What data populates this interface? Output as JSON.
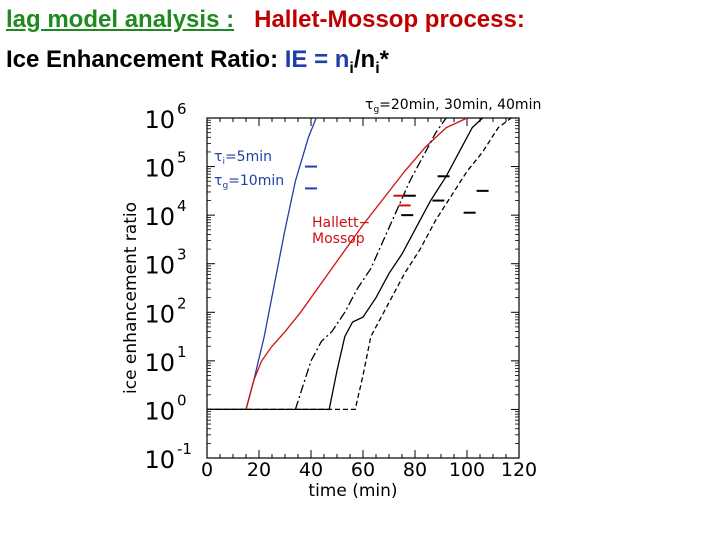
{
  "header": {
    "title_part1": "lag model analysis :",
    "title_part2": "Hallet-Mossop process:",
    "subtitle_prefix": "Ice Enhancement Ratio:",
    "subtitle_formula_a": "IE = n",
    "subtitle_sub1": "i",
    "subtitle_slash": "/n",
    "subtitle_sub2": "i",
    "subtitle_star": "*"
  },
  "colors": {
    "title_green": "#1f8a1f",
    "title_red": "#c00000",
    "formula_blue": "#1f3fa8",
    "series_blue": "#1f3fa8",
    "series_red": "#d01010",
    "series_black": "#000000"
  },
  "chart_data": {
    "type": "line",
    "xlabel": "time (min)",
    "ylabel": "ice enhancement ratio",
    "xlim": [
      0,
      120
    ],
    "ylim_log10": [
      -1,
      6
    ],
    "y_scale": "log",
    "x_ticks": [
      "0",
      "20",
      "40",
      "60",
      "80",
      "100",
      "120"
    ],
    "y_ticks": [
      {
        "base": "10",
        "exp": "-1"
      },
      {
        "base": "10",
        "exp": "0"
      },
      {
        "base": "10",
        "exp": "1"
      },
      {
        "base": "10",
        "exp": "2"
      },
      {
        "base": "10",
        "exp": "3"
      },
      {
        "base": "10",
        "exp": "4"
      },
      {
        "base": "10",
        "exp": "5"
      },
      {
        "base": "10",
        "exp": "6"
      }
    ],
    "grid": false,
    "annotations": {
      "top_label": "τ_g=20min, 30min, 40min",
      "top_label_tau": "τ",
      "top_label_sub": "g",
      "top_label_rest": "=20min, 30min, 40min",
      "blue_label_1_tau": "τ",
      "blue_label_1_sub": "i",
      "blue_label_1_rest": "=5min",
      "blue_label_2_tau": "τ",
      "blue_label_2_sub": "g",
      "blue_label_2_rest": "=10min",
      "red_label_line1": "Hallett−",
      "red_label_line2": "Mossop"
    },
    "series": [
      {
        "key": "blue",
        "style": "solid",
        "color": "#1f3fa8",
        "x": [
          0,
          15,
          18,
          22,
          26,
          30,
          34,
          39,
          42
        ],
        "y": [
          0,
          0,
          0.6,
          1.5,
          2.6,
          3.7,
          4.7,
          5.6,
          6.0
        ]
      },
      {
        "key": "red",
        "style": "solid",
        "color": "#d01010",
        "x": [
          15,
          18,
          21,
          25,
          30,
          36,
          44,
          52,
          60,
          68,
          76,
          84,
          92,
          100
        ],
        "y": [
          0,
          0.6,
          1.0,
          1.3,
          1.6,
          2.0,
          2.6,
          3.2,
          3.8,
          4.35,
          4.9,
          5.4,
          5.8,
          6.0
        ]
      },
      {
        "key": "black_20",
        "style": "dashdot",
        "color": "#000000",
        "x": [
          34,
          37,
          40,
          44,
          48,
          53,
          58,
          63,
          68,
          73,
          78,
          83,
          88,
          92
        ],
        "y": [
          0,
          0.5,
          1.0,
          1.4,
          1.6,
          2.0,
          2.5,
          2.9,
          3.5,
          4.1,
          4.7,
          5.2,
          5.7,
          6.0
        ]
      },
      {
        "key": "black_30",
        "style": "solid",
        "color": "#000000",
        "x": [
          0,
          47,
          50,
          53,
          56,
          60,
          65,
          70,
          75,
          80,
          86,
          92,
          98,
          102,
          106
        ],
        "y": [
          0,
          0,
          0.8,
          1.5,
          1.8,
          1.9,
          2.3,
          2.8,
          3.2,
          3.7,
          4.3,
          4.8,
          5.4,
          5.8,
          6.0
        ]
      },
      {
        "key": "black_40",
        "style": "dashed",
        "color": "#000000",
        "x": [
          0,
          57,
          60,
          63,
          66,
          71,
          76,
          82,
          88,
          94,
          100,
          106,
          112,
          117
        ],
        "y": [
          0,
          0,
          0.7,
          1.5,
          1.8,
          2.3,
          2.8,
          3.3,
          3.9,
          4.4,
          4.9,
          5.3,
          5.8,
          6.0
        ]
      }
    ],
    "markers": [
      {
        "x": 40,
        "y": 5.0,
        "color": "#1f3fa8"
      },
      {
        "x": 40,
        "y": 4.55,
        "color": "#1f3fa8"
      },
      {
        "x": 74,
        "y": 4.4,
        "color": "#d01010"
      },
      {
        "x": 76,
        "y": 4.2,
        "color": "#d01010"
      },
      {
        "x": 78,
        "y": 4.4,
        "color": "#000000"
      },
      {
        "x": 77,
        "y": 4.0,
        "color": "#000000"
      },
      {
        "x": 91,
        "y": 4.8,
        "color": "#000000"
      },
      {
        "x": 89,
        "y": 4.3,
        "color": "#000000"
      },
      {
        "x": 106,
        "y": 4.5,
        "color": "#000000"
      },
      {
        "x": 101,
        "y": 4.05,
        "color": "#000000"
      }
    ]
  }
}
